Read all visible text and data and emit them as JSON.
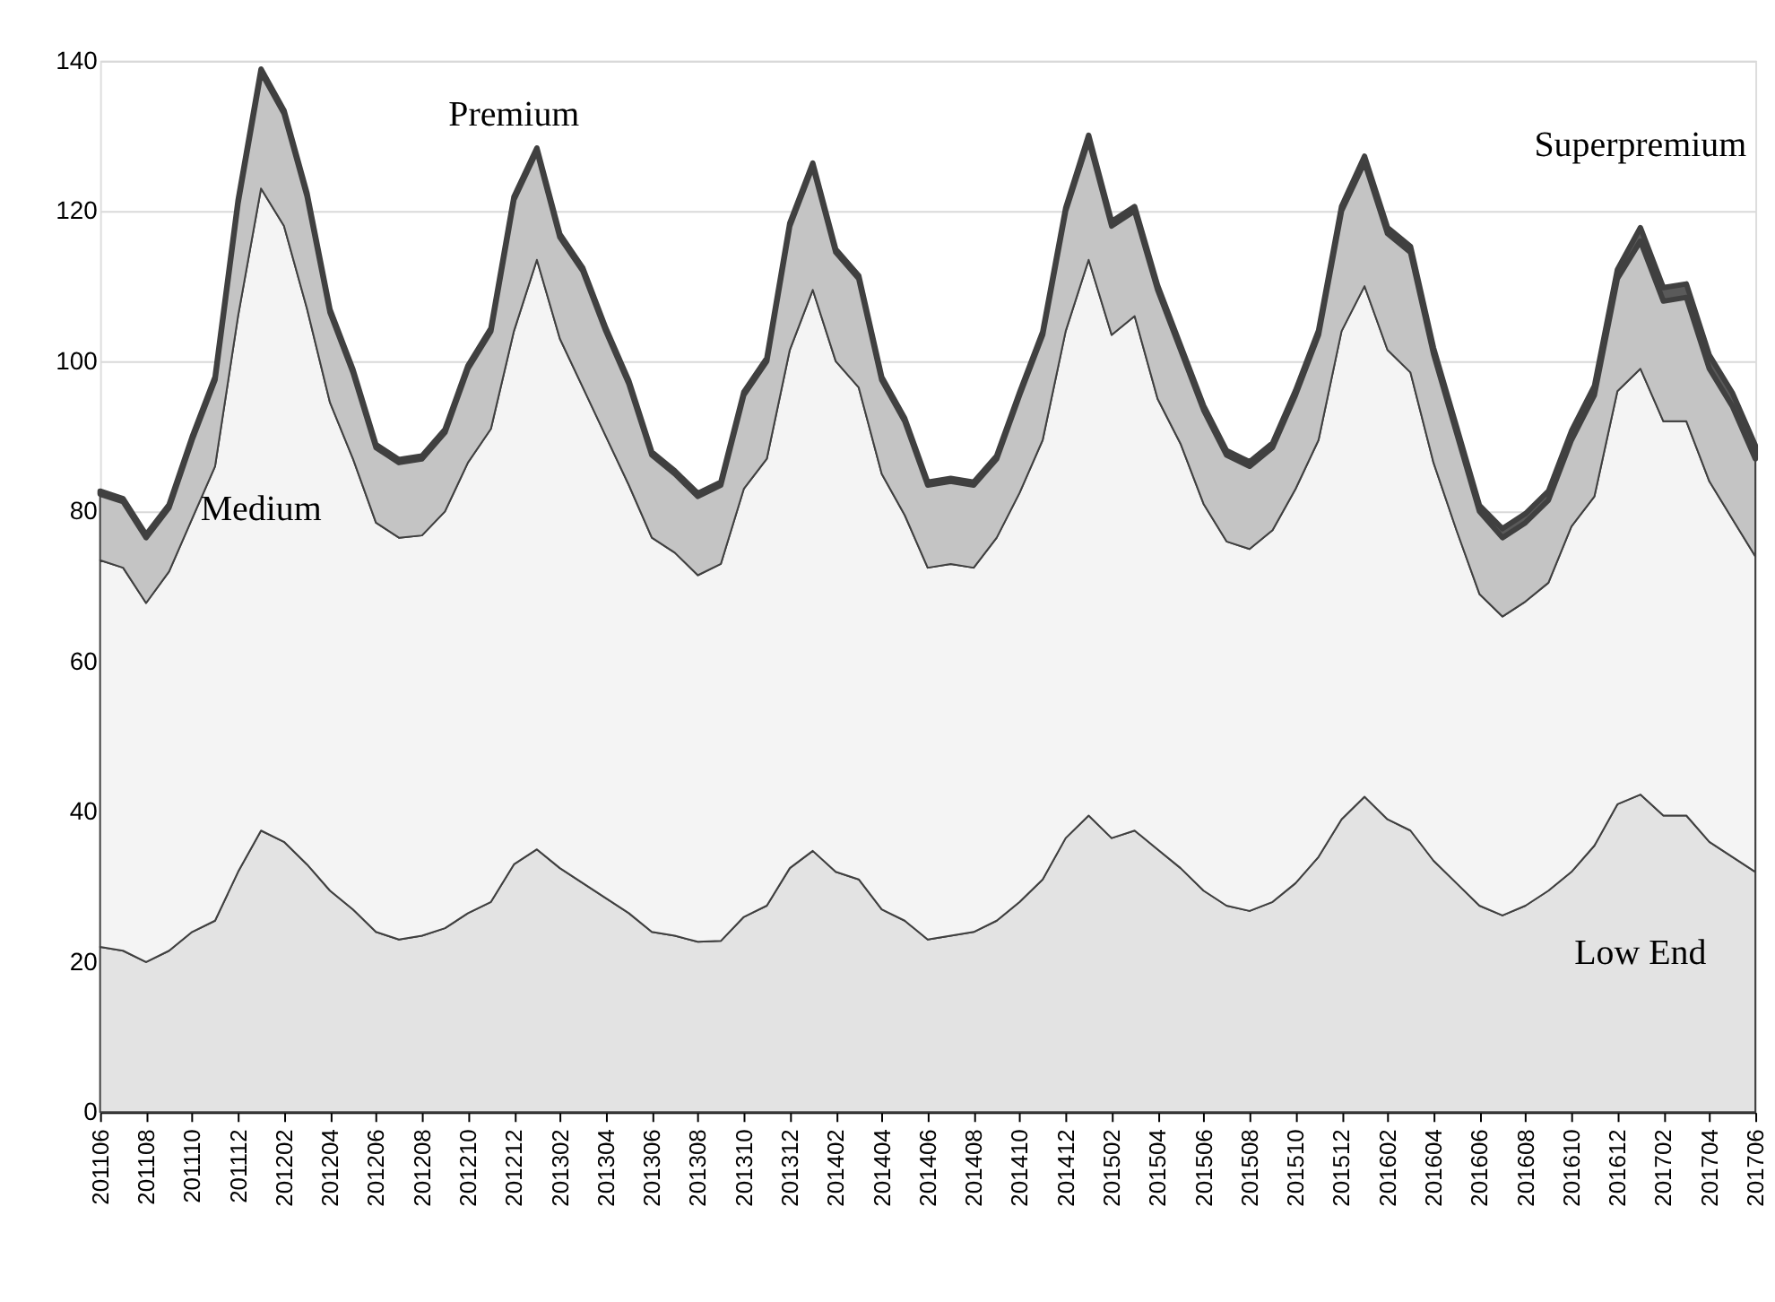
{
  "chart_data": {
    "type": "area",
    "stacked": true,
    "categories": [
      "201106",
      null,
      "201108",
      null,
      "201110",
      null,
      "201112",
      null,
      "201202",
      null,
      "201204",
      null,
      "201206",
      null,
      "201208",
      null,
      "201210",
      null,
      "201212",
      null,
      "201302",
      null,
      "201304",
      null,
      "201306",
      null,
      "201308",
      null,
      "201310",
      null,
      "201312",
      null,
      "201402",
      null,
      "201404",
      null,
      "201406",
      null,
      "201408",
      null,
      "201410",
      null,
      "201412",
      null,
      "201502",
      null,
      "201504",
      null,
      "201506",
      null,
      "201508",
      null,
      "201510",
      null,
      "201512",
      null,
      "201602",
      null,
      "201604",
      null,
      "201606",
      null,
      "201608",
      null,
      "201610",
      null,
      "201612",
      null,
      "201702",
      null,
      "201704",
      null,
      "201706"
    ],
    "series": [
      {
        "name": "Low End",
        "color": "#e3e3e3",
        "values": [
          22,
          21.5,
          20,
          21.5,
          24,
          25.5,
          32,
          37.5,
          36,
          33,
          29.5,
          27,
          24,
          23,
          23.5,
          24.5,
          26.5,
          28,
          33,
          35,
          32.5,
          30.5,
          28.5,
          26.5,
          24,
          23.5,
          22.7,
          22.8,
          26,
          27.5,
          32.5,
          34.8,
          32,
          31,
          27,
          25.5,
          23,
          23.5,
          24,
          25.5,
          28,
          31,
          36.5,
          39.5,
          36.5,
          37.5,
          35,
          32.5,
          29.5,
          27.5,
          26.8,
          28,
          30.5,
          34,
          39,
          42,
          39,
          37.5,
          33.5,
          30.5,
          27.5,
          26.2,
          27.5,
          29.5,
          32,
          35.5,
          41,
          42.3,
          39.5,
          39.5,
          36,
          34,
          32
        ]
      },
      {
        "name": "Medium",
        "color": "#f4f4f4",
        "values": [
          51.5,
          51,
          47.8,
          50.5,
          55,
          60.5,
          74,
          85.5,
          82,
          74,
          65,
          60,
          54.5,
          53.5,
          53.3,
          55.5,
          60,
          63,
          71,
          78.5,
          70.5,
          66,
          61.5,
          57,
          52.5,
          51,
          48.8,
          50.2,
          57,
          59.5,
          69,
          74.7,
          68,
          65.5,
          58,
          54,
          49.5,
          49.5,
          48.5,
          51,
          54.5,
          58.5,
          67.5,
          74,
          67,
          68.5,
          60,
          56.5,
          51.5,
          48.5,
          48.2,
          49.5,
          52.5,
          55.5,
          65,
          68,
          62.5,
          61,
          53,
          47,
          41.5,
          39.8,
          40.5,
          41,
          46,
          46.5,
          55,
          56.7,
          52.5,
          52.5,
          48,
          45,
          42
        ]
      },
      {
        "name": "Premium",
        "color": "#c4c4c4",
        "values": [
          8.8,
          8.8,
          8.7,
          8.5,
          10.5,
          11.5,
          15,
          15.5,
          15,
          15,
          12,
          11.5,
          10,
          10,
          10.2,
          10.5,
          12.5,
          13,
          17.5,
          14.5,
          13.5,
          15.5,
          14,
          13.5,
          11,
          10.5,
          10.5,
          10.5,
          12.5,
          13,
          16.5,
          16.5,
          14.5,
          14.5,
          12.5,
          12.5,
          11,
          11,
          11,
          10.5,
          13,
          14,
          16,
          16,
          14.5,
          14,
          14.5,
          12.5,
          12.5,
          11.5,
          11,
          11,
          12.5,
          14,
          16,
          16.5,
          15.5,
          16,
          14.5,
          13,
          11,
          10.5,
          10.5,
          11,
          11.5,
          13.5,
          15,
          17,
          16,
          16.5,
          15,
          15,
          13
        ]
      },
      {
        "name": "Superpremium",
        "color": "#5a5a5a",
        "values": [
          0.4,
          0.4,
          0.4,
          0.4,
          0.4,
          0.4,
          0.4,
          0.4,
          0.4,
          0.4,
          0.4,
          0.4,
          0.4,
          0.4,
          0.4,
          0.4,
          0.4,
          0.4,
          0.4,
          0.4,
          0.4,
          0.4,
          0.4,
          0.4,
          0.4,
          0.4,
          0.4,
          0.4,
          0.4,
          0.4,
          0.4,
          0.4,
          0.4,
          0.4,
          0.4,
          0.4,
          0.4,
          0.4,
          0.4,
          0.4,
          0.4,
          0.4,
          0.4,
          0.6,
          0.6,
          0.6,
          0.6,
          0.6,
          0.6,
          0.6,
          0.6,
          0.6,
          0.6,
          0.6,
          0.6,
          0.8,
          0.8,
          0.8,
          0.8,
          0.8,
          0.8,
          1.2,
          1.2,
          1.2,
          1.2,
          1.2,
          1.2,
          1.8,
          1.8,
          1.8,
          1.8,
          1.8,
          1.8
        ]
      }
    ],
    "ylim": [
      0,
      140
    ],
    "yticks": [
      0,
      20,
      40,
      60,
      80,
      100,
      120,
      140
    ],
    "grid": "y"
  }
}
